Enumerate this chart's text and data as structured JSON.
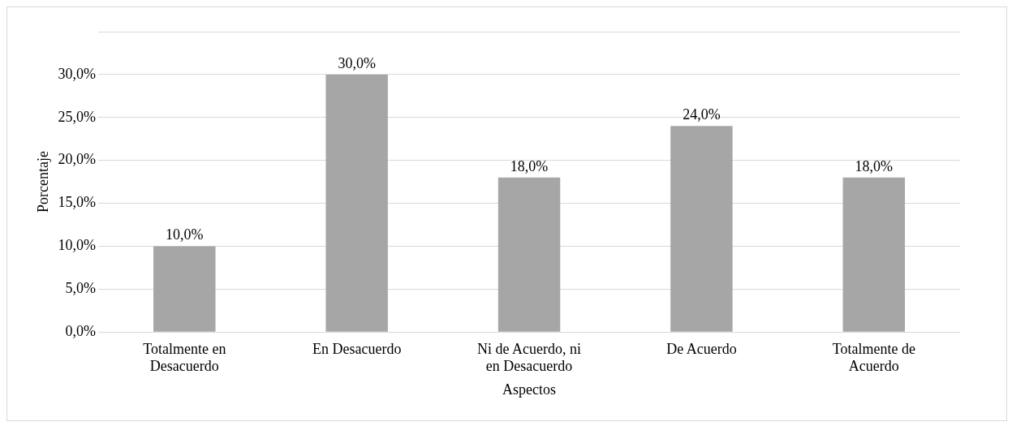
{
  "chart_data": {
    "type": "bar",
    "xlabel": "Aspectos",
    "ylabel": "Porcentaje",
    "categories": [
      "Totalmente en Desacuerdo",
      "En Desacuerdo",
      "Ni de Acuerdo, ni en Desacuerdo",
      "De Acuerdo",
      "Totalmente de Acuerdo"
    ],
    "values": [
      10,
      30,
      18,
      24,
      18
    ],
    "color": "#a6a6a6",
    "value_labels": [
      "10,0%",
      "30,0%",
      "18,0%",
      "24,0%",
      "18,0%"
    ],
    "ylim": [
      0,
      35
    ],
    "yticks": [
      {
        "value": 0,
        "label": "0,0%"
      },
      {
        "value": 5,
        "label": "5,0%"
      },
      {
        "value": 10,
        "label": "10,0%"
      },
      {
        "value": 15,
        "label": "15,0%"
      },
      {
        "value": 20,
        "label": "20,0%"
      },
      {
        "value": 25,
        "label": "25,0%"
      },
      {
        "value": 30,
        "label": "30,0%"
      },
      {
        "value": 35,
        "label": null
      }
    ],
    "grid": "y",
    "legend": false
  }
}
